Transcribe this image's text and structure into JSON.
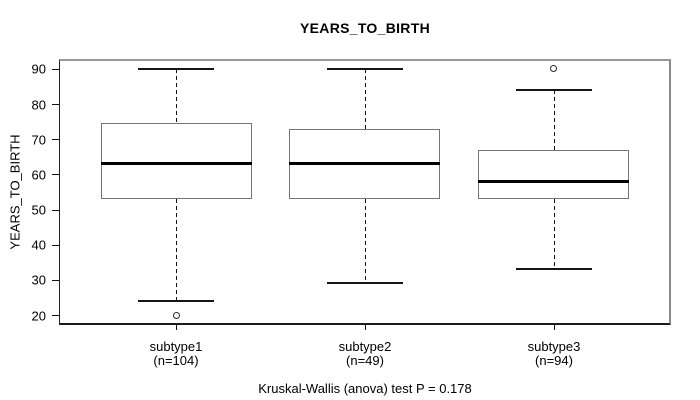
{
  "chart_data": {
    "type": "boxplot",
    "title": "YEARS_TO_BIRTH",
    "ylabel": "YEARS_TO_BIRTH",
    "caption": "Kruskal-Wallis (anova) test P = 0.178",
    "yticks": [
      20,
      30,
      40,
      50,
      60,
      70,
      80,
      90
    ],
    "ylim": [
      17.2,
      92.8
    ],
    "xlim": [
      0.38,
      3.62
    ],
    "grid": false,
    "legend": false,
    "box_width": 0.8,
    "groups": [
      {
        "label": "subtype1",
        "sublabel": "(n=104)",
        "position": 1,
        "whisker_low": 24,
        "q1": 53,
        "median": 63,
        "q3": 74.5,
        "whisker_high": 90,
        "outliers": [
          20
        ]
      },
      {
        "label": "subtype2",
        "sublabel": "(n=49)",
        "position": 2,
        "whisker_low": 29,
        "q1": 53,
        "median": 63,
        "q3": 73,
        "whisker_high": 90,
        "outliers": []
      },
      {
        "label": "subtype3",
        "sublabel": "(n=94)",
        "position": 3,
        "whisker_low": 33,
        "q1": 53,
        "median": 58,
        "q3": 67,
        "whisker_high": 84,
        "outliers": [
          90
        ]
      }
    ]
  }
}
